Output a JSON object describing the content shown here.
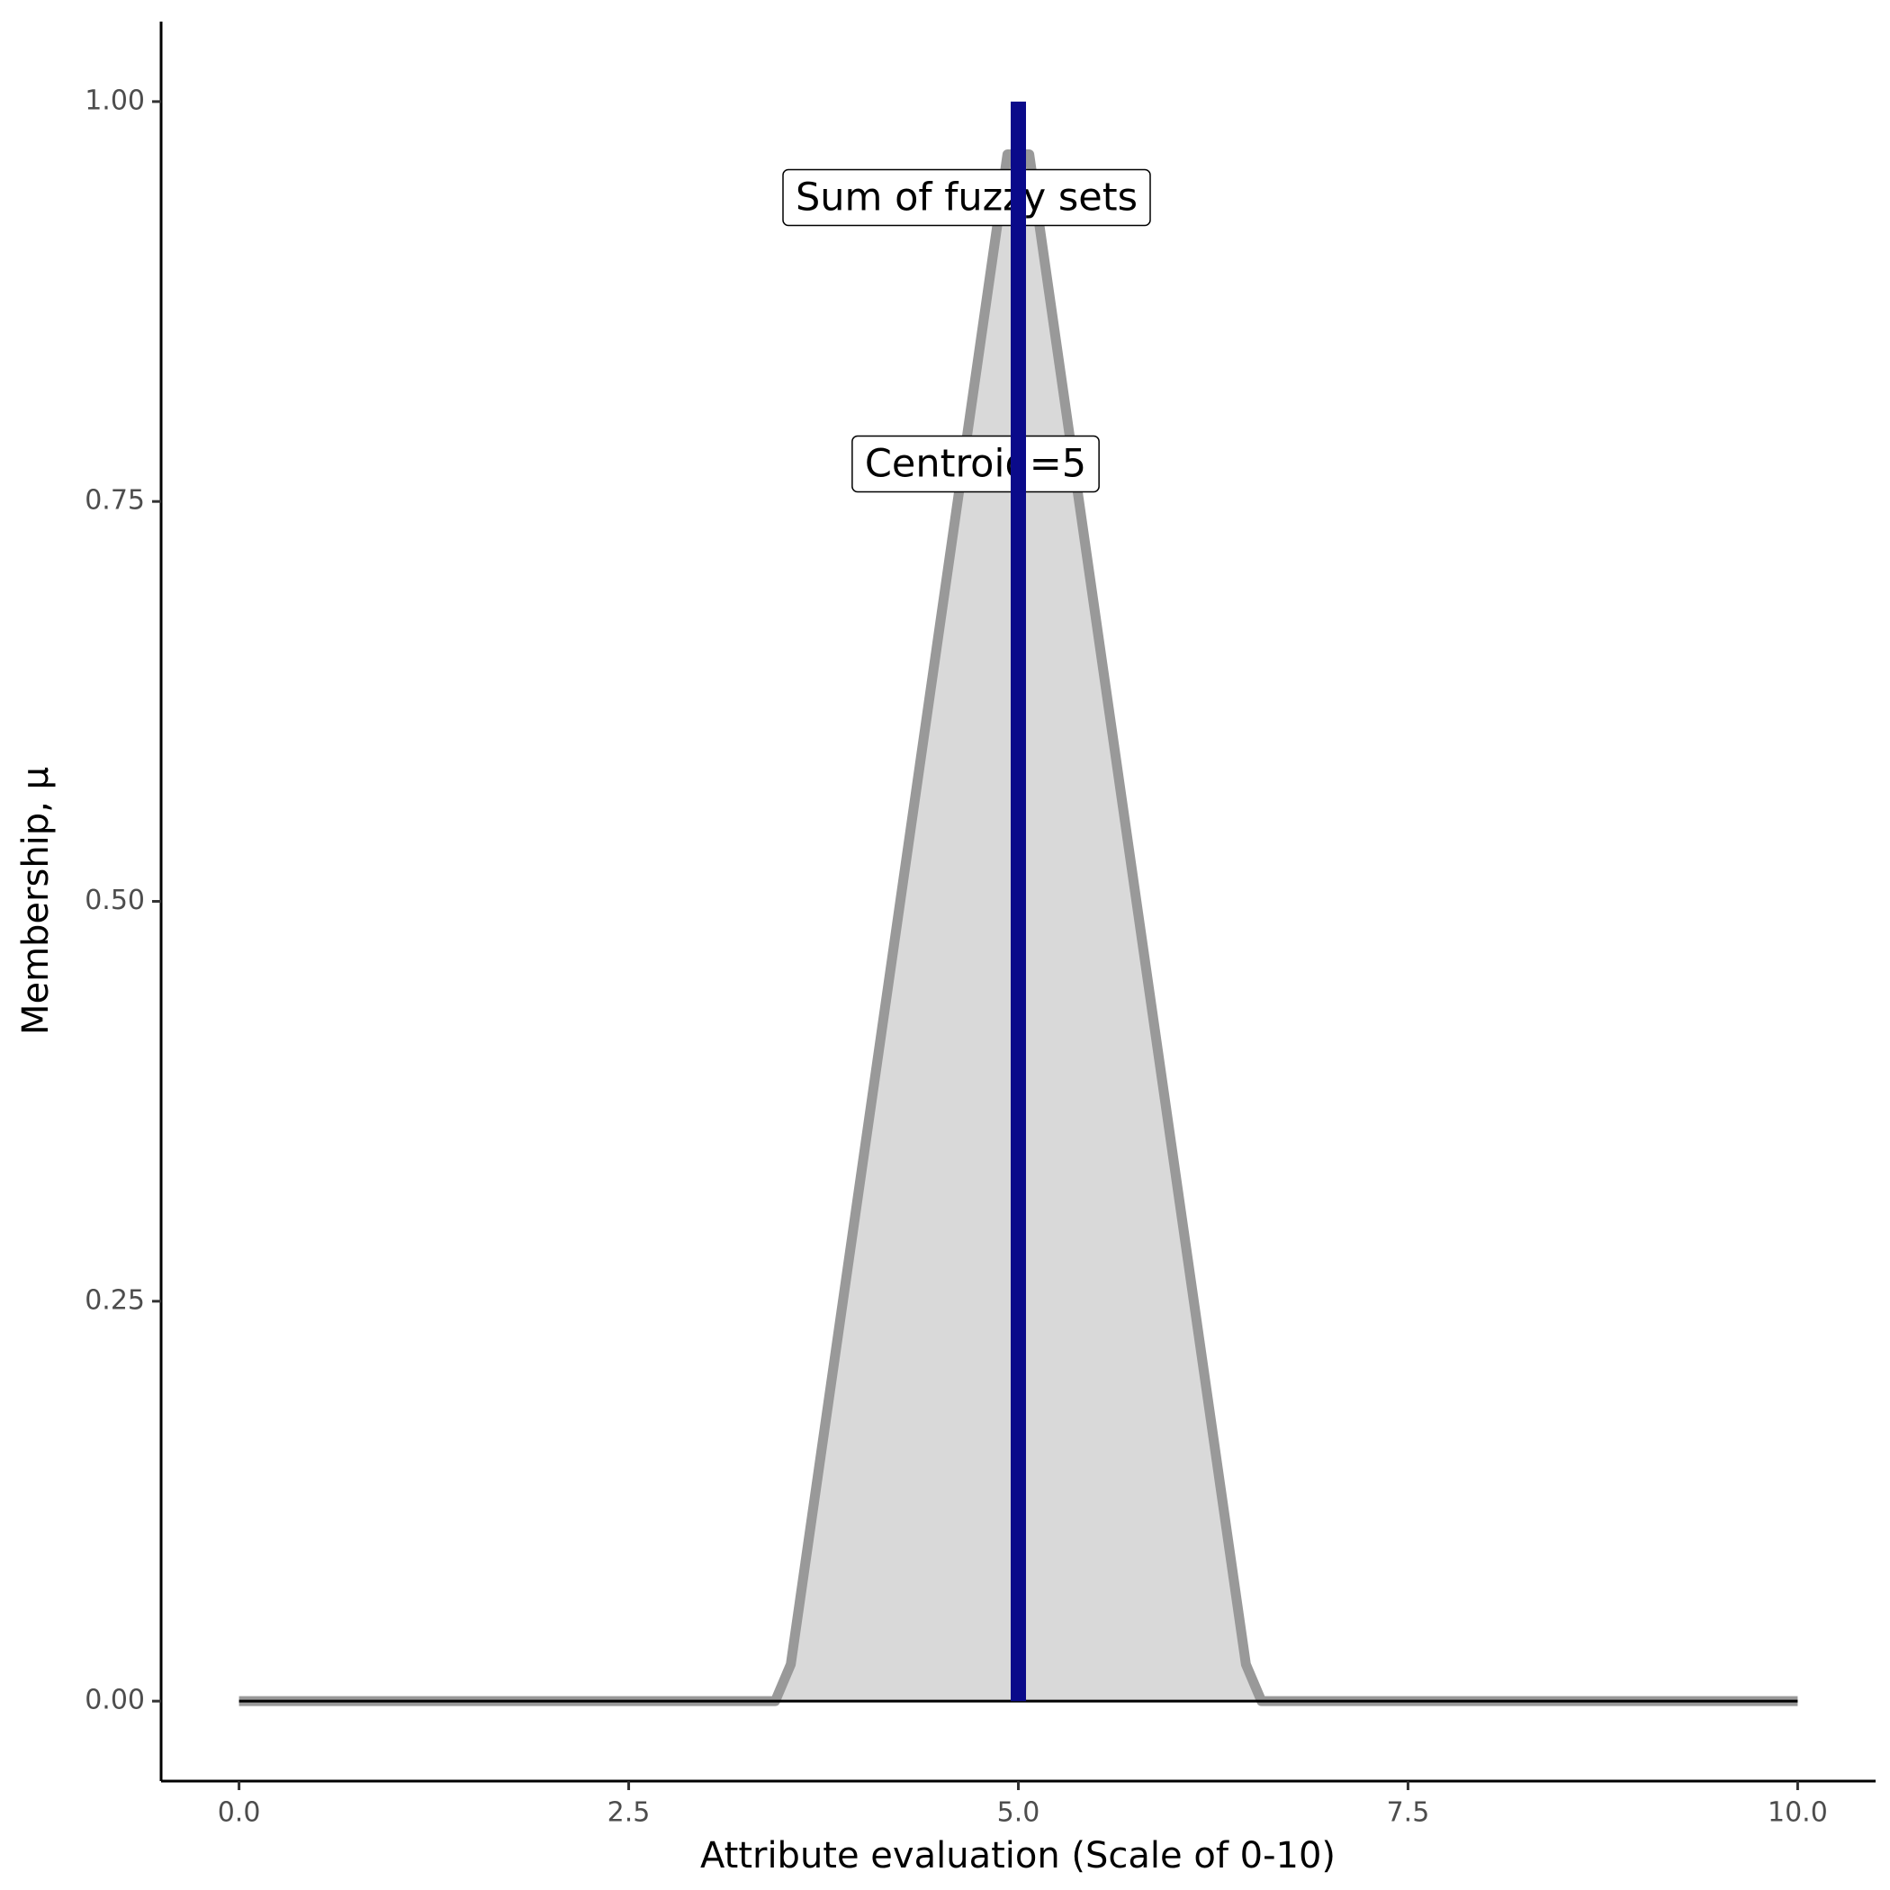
{
  "chart_data": {
    "type": "area",
    "x_label": "Attribute evaluation (Scale of 0-10)",
    "y_label": "Membership, μ",
    "xlim": [
      -0.5,
      10.5
    ],
    "ylim": [
      -0.05,
      1.05
    ],
    "xticks": [
      {
        "value": 0,
        "label": "0.0"
      },
      {
        "value": 2.5,
        "label": "2.5"
      },
      {
        "value": 5,
        "label": "5.0"
      },
      {
        "value": 7.5,
        "label": "7.5"
      },
      {
        "value": 10,
        "label": "10.0"
      }
    ],
    "yticks": [
      {
        "value": 0,
        "label": "0.00"
      },
      {
        "value": 0.25,
        "label": "0.25"
      },
      {
        "value": 0.5,
        "label": "0.50"
      },
      {
        "value": 0.75,
        "label": "0.75"
      },
      {
        "value": 1,
        "label": "1.00"
      }
    ],
    "series": [
      {
        "color": "#999999",
        "fill": "#d9d9d9",
        "x": [
          0,
          3.44,
          3.54,
          4.93,
          5.07,
          6.46,
          6.56,
          10
        ],
        "values": [
          0,
          0,
          0.023,
          0.967,
          0.967,
          0.023,
          0,
          0
        ]
      },
      {
        "color": "#0a0a8a",
        "x": [
          5,
          5
        ],
        "values": [
          0,
          1
        ]
      }
    ],
    "annotations": [
      {
        "text": "Sum of fuzzy sets"
      },
      {
        "text": "Centroid=5"
      }
    ]
  }
}
